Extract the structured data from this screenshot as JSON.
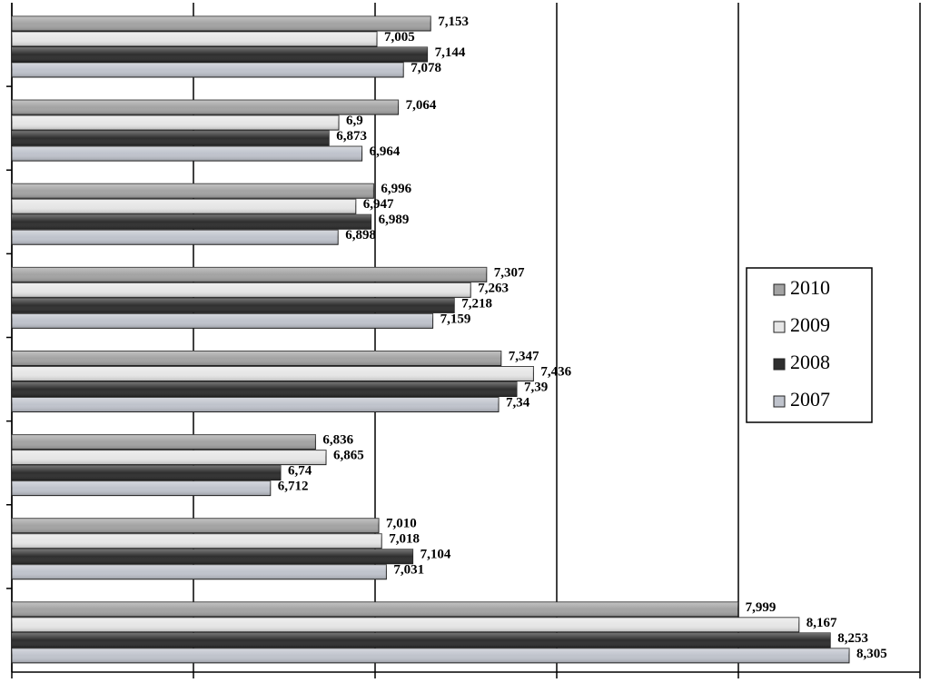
{
  "chart_data": {
    "type": "hbar",
    "categories": [
      null,
      null,
      null,
      null,
      null,
      null,
      null,
      null
    ],
    "series": [
      {
        "name": "2010",
        "color": "#a3a3a3",
        "values": [
          7.153,
          7.064,
          6.996,
          7.307,
          7.347,
          6.836,
          7.01,
          7.999
        ],
        "value_labels": [
          "7,153",
          "7,064",
          "6,996",
          "7,307",
          "7,347",
          "6,836",
          "7,010",
          "7,999"
        ]
      },
      {
        "name": "2009",
        "color": "#e6e6e6",
        "values": [
          7.005,
          6.9,
          6.947,
          7.263,
          7.436,
          6.865,
          7.018,
          8.167
        ],
        "value_labels": [
          "7,005",
          "6,9",
          "6,947",
          "7,263",
          "7,436",
          "6,865",
          "7,018",
          "8,167"
        ]
      },
      {
        "name": "2008",
        "color": "#2e2e2e",
        "values": [
          7.144,
          6.873,
          6.989,
          7.218,
          7.39,
          6.74,
          7.104,
          8.253
        ],
        "value_labels": [
          "7,144",
          "6,873",
          "6,989",
          "7,218",
          "7,39",
          "6,74",
          "7,104",
          "8,253"
        ]
      },
      {
        "name": "2007",
        "color": "#bfc3cc",
        "values": [
          7.078,
          6.964,
          6.898,
          7.159,
          7.34,
          6.712,
          7.031,
          8.305
        ],
        "value_labels": [
          "7,078",
          "6,964",
          "6,898",
          "7,159",
          "7,34",
          "6,712",
          "7,031",
          "8,305"
        ]
      }
    ],
    "xlim": [
      6,
      8.5
    ],
    "xticks": [
      6,
      6.5,
      7,
      7.5,
      8,
      8.5
    ],
    "grid": true,
    "legend": "right"
  }
}
